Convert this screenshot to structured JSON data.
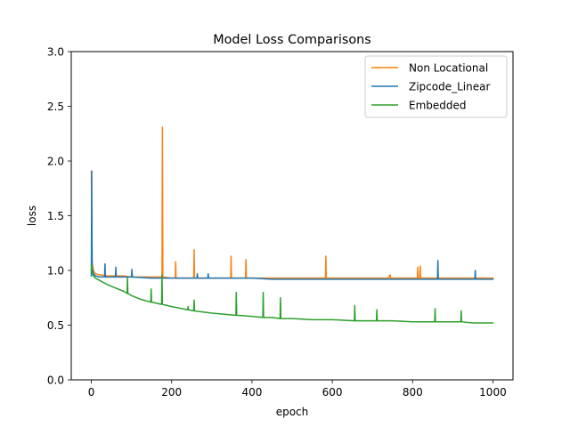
{
  "chart_data": {
    "type": "line",
    "title": "Model Loss Comparisons",
    "xlabel": "epoch",
    "ylabel": "loss",
    "xlim": [
      -50,
      1050
    ],
    "ylim": [
      0,
      3.0
    ],
    "xticks": [
      0,
      200,
      400,
      600,
      800,
      1000
    ],
    "xtick_labels": [
      "0",
      "200",
      "400",
      "600",
      "800",
      "1000"
    ],
    "yticks": [
      0,
      0.5,
      1.0,
      1.5,
      2.0,
      2.5,
      3.0
    ],
    "ytick_labels": [
      "0.0",
      "0.5",
      "1.0",
      "1.5",
      "2.0",
      "2.5",
      "3.0"
    ],
    "grid": false,
    "legend_position": "top-right",
    "series": [
      {
        "name": "Non Locational",
        "color": "#ff7f0e",
        "x": [
          0,
          2,
          5,
          10,
          20,
          40,
          60,
          80,
          100,
          130,
          150,
          170,
          176,
          177,
          178,
          180,
          200,
          209,
          210,
          211,
          230,
          255,
          256,
          257,
          280,
          300,
          330,
          347,
          348,
          349,
          370,
          384,
          385,
          386,
          420,
          460,
          500,
          540,
          580,
          583,
          584,
          585,
          620,
          660,
          700,
          740,
          744,
          745,
          780,
          812,
          813,
          814,
          818,
          819,
          820,
          850,
          900,
          950,
          1000
        ],
        "y": [
          1.9,
          1.08,
          1.0,
          0.97,
          0.96,
          0.95,
          0.95,
          0.95,
          0.94,
          0.94,
          0.94,
          0.94,
          0.94,
          2.31,
          0.94,
          0.94,
          0.93,
          0.93,
          1.08,
          0.93,
          0.93,
          0.93,
          1.19,
          0.93,
          0.93,
          0.93,
          0.93,
          0.93,
          1.13,
          0.93,
          0.93,
          0.93,
          1.1,
          0.93,
          0.93,
          0.93,
          0.93,
          0.93,
          0.93,
          0.93,
          1.13,
          0.93,
          0.93,
          0.93,
          0.93,
          0.93,
          0.96,
          0.93,
          0.93,
          0.93,
          1.03,
          0.93,
          0.93,
          1.04,
          0.93,
          0.93,
          0.93,
          0.93,
          0.93
        ]
      },
      {
        "name": "Zipcode_Linear",
        "color": "#1f77b4",
        "x": [
          0,
          1,
          2,
          5,
          10,
          20,
          33,
          34,
          35,
          60,
          61,
          62,
          100,
          101,
          102,
          150,
          200,
          263,
          264,
          265,
          290,
          291,
          292,
          350,
          400,
          450,
          500,
          550,
          600,
          650,
          700,
          750,
          800,
          862,
          863,
          864,
          900,
          955,
          956,
          957,
          1000
        ],
        "y": [
          0.95,
          1.91,
          1.02,
          0.97,
          0.95,
          0.94,
          0.94,
          1.06,
          0.94,
          0.94,
          1.03,
          0.94,
          0.94,
          1.01,
          0.94,
          0.93,
          0.93,
          0.93,
          0.97,
          0.93,
          0.93,
          0.97,
          0.93,
          0.93,
          0.93,
          0.92,
          0.92,
          0.92,
          0.92,
          0.92,
          0.92,
          0.92,
          0.92,
          0.92,
          1.09,
          0.92,
          0.92,
          0.92,
          1.0,
          0.92,
          0.92
        ]
      },
      {
        "name": "Embedded",
        "color": "#2ca02c",
        "x": [
          0,
          1,
          2,
          5,
          10,
          20,
          40,
          60,
          80,
          89,
          90,
          91,
          100,
          120,
          148,
          149,
          150,
          175,
          176,
          177,
          200,
          240,
          241,
          242,
          255,
          256,
          257,
          300,
          360,
          361,
          362,
          400,
          427,
          428,
          429,
          450,
          470,
          471,
          472,
          500,
          550,
          600,
          655,
          656,
          657,
          700,
          710,
          711,
          712,
          750,
          800,
          855,
          856,
          857,
          900,
          920,
          921,
          922,
          950,
          1000
        ],
        "y": [
          1.0,
          1.05,
          0.98,
          0.95,
          0.93,
          0.91,
          0.87,
          0.84,
          0.81,
          0.79,
          0.93,
          0.79,
          0.77,
          0.74,
          0.71,
          0.83,
          0.71,
          0.69,
          0.96,
          0.69,
          0.67,
          0.64,
          0.67,
          0.64,
          0.63,
          0.73,
          0.63,
          0.61,
          0.59,
          0.8,
          0.59,
          0.58,
          0.57,
          0.8,
          0.57,
          0.57,
          0.56,
          0.75,
          0.56,
          0.56,
          0.55,
          0.55,
          0.54,
          0.68,
          0.54,
          0.54,
          0.54,
          0.64,
          0.54,
          0.54,
          0.53,
          0.53,
          0.65,
          0.53,
          0.53,
          0.53,
          0.63,
          0.53,
          0.52,
          0.52
        ]
      }
    ]
  }
}
